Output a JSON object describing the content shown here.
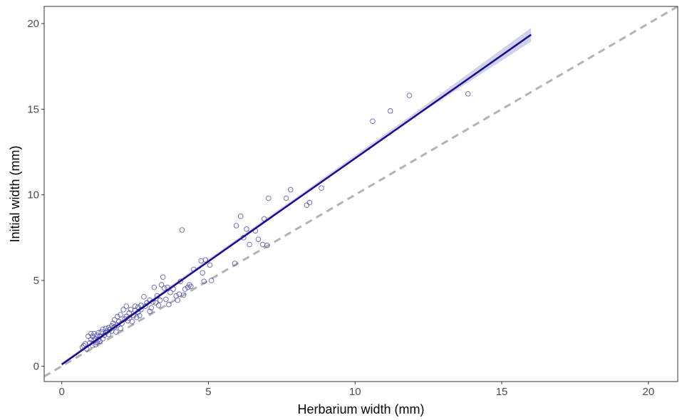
{
  "chart_data": {
    "type": "scatter",
    "title": "",
    "xlabel": "Herbarium width (mm)",
    "ylabel": "Initial width (mm)",
    "xlim": [
      -0.6,
      21
    ],
    "ylim": [
      -0.9,
      21
    ],
    "x_ticks": [
      "0",
      "5",
      "10",
      "15",
      "20"
    ],
    "y_ticks": [
      "0",
      "5",
      "10",
      "15",
      "20"
    ],
    "grid": false,
    "legend": "none",
    "colors": {
      "points": "#3f3fa6",
      "fit_line": "#1a0a8c",
      "confidence_band": "#c8cae8",
      "reference_line": "#b3b3b3",
      "panel_border": "#333333"
    },
    "series": [
      {
        "kind": "points",
        "x": [
          0.7,
          0.75,
          0.8,
          0.85,
          0.9,
          0.95,
          1.0,
          1.0,
          1.05,
          1.05,
          1.1,
          1.1,
          1.15,
          1.15,
          1.2,
          1.2,
          1.25,
          1.25,
          1.3,
          1.3,
          1.35,
          1.4,
          1.4,
          1.45,
          1.5,
          1.5,
          1.55,
          1.6,
          1.6,
          1.65,
          1.7,
          1.7,
          1.75,
          1.8,
          1.8,
          1.85,
          1.9,
          1.9,
          1.95,
          2.0,
          2.0,
          2.05,
          2.1,
          2.15,
          2.2,
          2.2,
          2.25,
          2.3,
          2.3,
          2.35,
          2.4,
          2.45,
          2.5,
          2.5,
          2.55,
          2.6,
          2.6,
          2.65,
          2.7,
          2.7,
          2.8,
          2.85,
          2.9,
          3.0,
          3.0,
          3.05,
          3.1,
          3.15,
          3.2,
          3.25,
          3.3,
          3.35,
          3.4,
          3.45,
          3.5,
          3.55,
          3.6,
          3.65,
          3.7,
          3.8,
          3.9,
          3.95,
          4.0,
          4.05,
          4.1,
          4.15,
          4.2,
          4.3,
          4.35,
          4.4,
          4.5,
          4.75,
          4.8,
          4.85,
          4.9,
          5.05,
          5.1,
          5.9,
          5.95,
          6.1,
          6.2,
          6.3,
          6.4,
          6.6,
          6.7,
          6.85,
          6.9,
          7.0,
          7.05,
          7.65,
          7.8,
          8.35,
          8.45,
          8.85,
          10.6,
          11.2,
          11.85,
          13.85
        ],
        "y": [
          1.1,
          1.2,
          1.3,
          1.0,
          1.75,
          1.35,
          1.9,
          1.55,
          1.2,
          1.75,
          1.5,
          1.9,
          1.25,
          1.6,
          1.8,
          1.4,
          1.55,
          1.95,
          1.45,
          1.75,
          2.0,
          1.6,
          2.15,
          1.8,
          1.95,
          2.2,
          2.05,
          1.85,
          2.25,
          2.15,
          2.35,
          2.05,
          2.5,
          2.3,
          2.7,
          2.0,
          2.9,
          2.4,
          2.6,
          3.0,
          2.2,
          2.5,
          3.3,
          2.75,
          2.9,
          3.5,
          2.65,
          2.8,
          3.1,
          3.3,
          2.6,
          2.95,
          3.25,
          3.5,
          2.85,
          3.15,
          3.45,
          2.95,
          3.3,
          3.55,
          4.05,
          3.5,
          3.7,
          3.2,
          3.85,
          3.4,
          3.75,
          4.6,
          3.7,
          4.1,
          3.55,
          3.85,
          4.75,
          5.2,
          4.55,
          3.9,
          4.6,
          3.6,
          4.3,
          4.5,
          4.1,
          3.85,
          4.2,
          4.95,
          7.95,
          4.15,
          4.5,
          4.6,
          4.75,
          4.65,
          5.65,
          6.15,
          5.45,
          4.95,
          6.2,
          5.9,
          5.0,
          6.0,
          8.2,
          8.75,
          7.5,
          8.0,
          7.1,
          7.9,
          7.4,
          7.1,
          8.6,
          7.05,
          9.8,
          9.8,
          10.3,
          9.4,
          9.55,
          10.4,
          14.3,
          14.9,
          15.8,
          15.9
        ]
      },
      {
        "kind": "fit_line",
        "x": [
          0,
          16
        ],
        "y": [
          0.1,
          19.35
        ]
      },
      {
        "kind": "confidence_band",
        "x": [
          0,
          4,
          8,
          12,
          16
        ],
        "lower": [
          0.02,
          4.93,
          9.75,
          14.5,
          18.95
        ],
        "upper": [
          0.2,
          5.05,
          9.87,
          14.75,
          19.75
        ]
      },
      {
        "kind": "reference_line",
        "x": [
          -0.6,
          21
        ],
        "y": [
          -0.6,
          21
        ]
      }
    ]
  }
}
